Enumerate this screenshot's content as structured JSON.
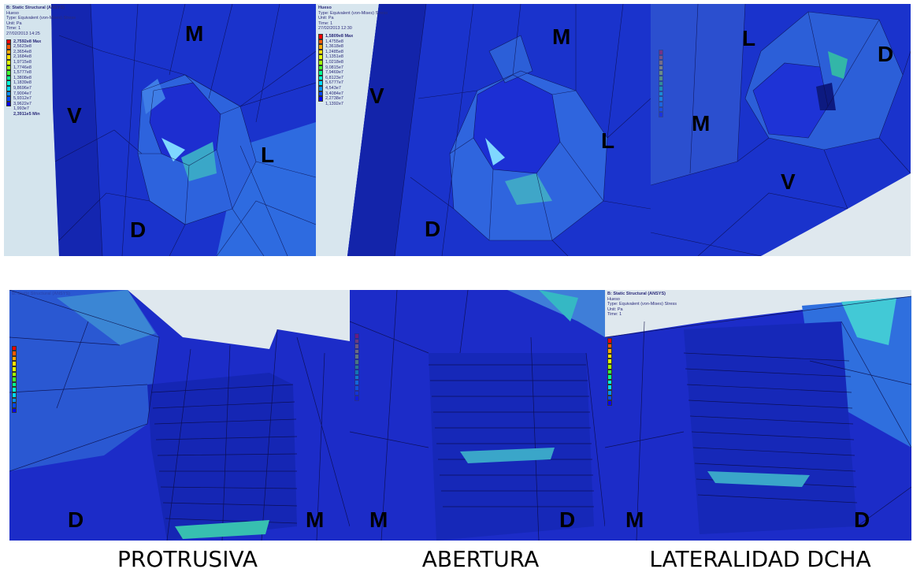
{
  "legend_colors": [
    "#ff0000",
    "#ff5a00",
    "#ffaa00",
    "#ffe000",
    "#e0ff00",
    "#a0ff00",
    "#40ff30",
    "#00ff90",
    "#00ffd8",
    "#00d8ff",
    "#0090ff",
    "#0048ff",
    "#0000ff"
  ],
  "panels": [
    {
      "id": "top-1",
      "header": [
        "B: Static Structural (ANSYS)",
        "Hueso",
        "Type: Equivalent (von-Mises) Stress",
        "Unit: Pa",
        "Time: 1",
        "27/02/2013 14:25"
      ],
      "max_label": "2,7592e8 Max",
      "min_label": "2,3911e5 Min",
      "ticks": [
        "2,5623e8",
        "2,3654e8",
        "2,1684e8",
        "1,9715e8",
        "1,7746e8",
        "1,5777e8",
        "1,3808e8",
        "1,1839e8",
        "9,8696e7",
        "7,9004e7",
        "5,9312e7",
        "3,9622e7",
        "1,993e7"
      ],
      "letters": [
        "M",
        "V",
        "L",
        "D"
      ]
    },
    {
      "id": "top-2",
      "header": [
        "Hueso",
        "Type: Equivalent (von-Mises) Stress",
        "Unit: Pa",
        "Time: 1",
        "27/02/2013 12:30"
      ],
      "max_label": "1,5809e8 Max",
      "min_label": "",
      "ticks": [
        "1,4755e8",
        "1,3618e8",
        "1,2485e8",
        "1,1351e8",
        "1,0218e8",
        "9,0815e7",
        "7,9469e7",
        "6,8123e7",
        "5,6777e7",
        "4,543e7",
        "3,4084e7",
        "2,2738e7",
        "1,1392e7"
      ],
      "letters": [
        "M",
        "V",
        "L",
        "D"
      ]
    },
    {
      "id": "top-3",
      "header": [],
      "max_label": "",
      "min_label": "",
      "ticks": [],
      "letters": [
        "L",
        "D",
        "M",
        "V"
      ]
    },
    {
      "id": "bottom-1",
      "header": [
        "B: Static Structural (ANSYS)"
      ],
      "max_label": "",
      "min_label": "",
      "ticks": [],
      "letters": [
        "D",
        "M"
      ]
    },
    {
      "id": "bottom-2",
      "header": [],
      "max_label": "",
      "min_label": "",
      "ticks": [],
      "letters": [
        "M",
        "D"
      ]
    },
    {
      "id": "bottom-3",
      "header": [
        "B: Static Structural (ANSYS)",
        "Hueso",
        "Type: Equivalent (von-Mises) Stress",
        "Unit: Pa",
        "Time: 1"
      ],
      "max_label": "",
      "min_label": "",
      "ticks": [],
      "letters": [
        "M",
        "D"
      ]
    }
  ],
  "captions": [
    "PROTRUSIVA",
    "ABERTURA",
    "LATERALIDAD DCHA"
  ]
}
